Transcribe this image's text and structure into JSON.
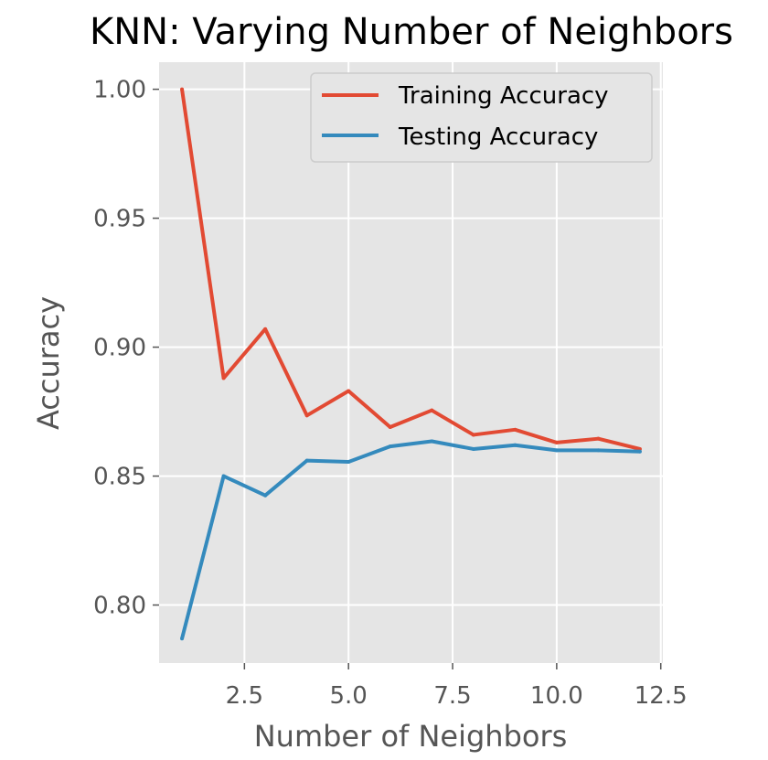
{
  "chart_data": {
    "type": "line",
    "title": "KNN: Varying Number of Neighbors",
    "xlabel": "Number of Neighbors",
    "ylabel": "Accuracy",
    "xlim": [
      0.45,
      12.55
    ],
    "ylim": [
      0.7775,
      1.0105
    ],
    "xticks": [
      2.5,
      5.0,
      7.5,
      10.0,
      12.5
    ],
    "xtick_labels": [
      "2.5",
      "5.0",
      "7.5",
      "10.0",
      "12.5"
    ],
    "yticks": [
      0.8,
      0.85,
      0.9,
      0.95,
      1.0
    ],
    "ytick_labels": [
      "0.80",
      "0.85",
      "0.90",
      "0.95",
      "1.00"
    ],
    "grid": true,
    "legend_position": "top-right",
    "x": [
      1,
      2,
      3,
      4,
      5,
      6,
      7,
      8,
      9,
      10,
      11,
      12
    ],
    "series": [
      {
        "name": "Training Accuracy",
        "color": "#E24A33",
        "values": [
          1.0,
          0.888,
          0.907,
          0.8735,
          0.883,
          0.869,
          0.8755,
          0.866,
          0.868,
          0.863,
          0.8645,
          0.8605
        ]
      },
      {
        "name": "Testing Accuracy",
        "color": "#348ABD",
        "values": [
          0.787,
          0.85,
          0.8425,
          0.856,
          0.8555,
          0.8615,
          0.8635,
          0.8605,
          0.862,
          0.86,
          0.86,
          0.8595
        ]
      }
    ],
    "colors": {
      "plot_background": "#E5E5E5",
      "grid": "#FFFFFF"
    }
  }
}
